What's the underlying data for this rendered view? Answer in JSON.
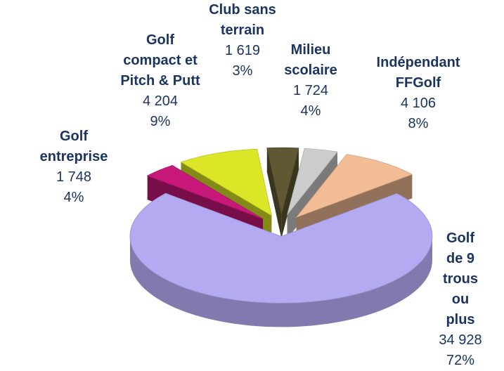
{
  "chart_data": {
    "type": "pie3d",
    "categories": [
      "Golf de 9\ntrous ou\nplus",
      "Golf\nentreprise",
      "Golf\ncompact et\nPitch & Putt",
      "Club sans\nterrain",
      "Milieu\nscolaire",
      "Indépendant\nFFGolf"
    ],
    "values": [
      34928,
      1748,
      4204,
      1619,
      1724,
      4106
    ],
    "value_labels": [
      "34 928",
      "1 748",
      "4 204",
      "1 619",
      "1 724",
      "4 106"
    ],
    "percent_labels": [
      "72%",
      "4%",
      "9%",
      "3%",
      "4%",
      "8%"
    ],
    "colors": [
      "#b4aaf2",
      "#c8187a",
      "#dbe626",
      "#5f5832",
      "#cccccc",
      "#f2bc94"
    ]
  }
}
